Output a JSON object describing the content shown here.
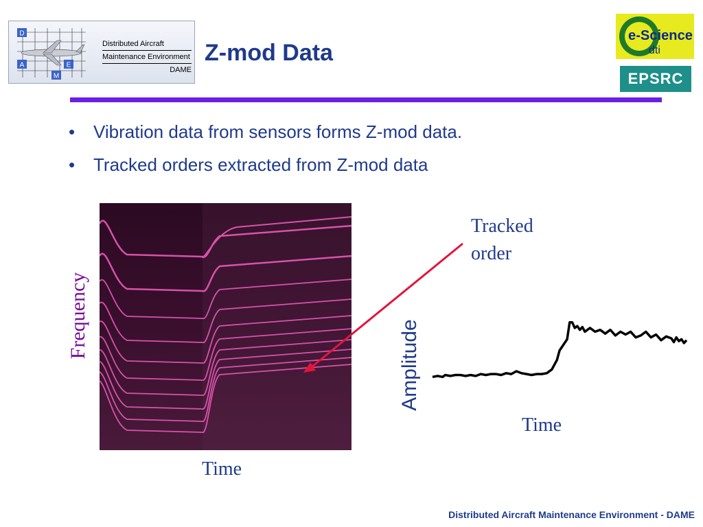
{
  "header": {
    "title": "Z-mod Data",
    "dame_logo": {
      "line1": "Distributed Aircraft",
      "line2": "Maintenance Environment",
      "line3": "DAME",
      "letters": [
        "D",
        "A",
        "M",
        "E"
      ]
    },
    "escience_logo": {
      "main": "e-Science",
      "sub": "dti"
    },
    "epsrc_logo": "EPSRC"
  },
  "bullets": [
    "Vibration data from sensors forms Z-mod data.",
    "Tracked orders extracted from Z-mod data"
  ],
  "spectrogram": {
    "ylabel": "Frequency",
    "xlabel": "Time"
  },
  "annotation": {
    "line1": "Tracked",
    "line2": "order"
  },
  "chart_data": {
    "type": "line",
    "title": "",
    "xlabel": "Time",
    "ylabel": "Amplitude",
    "grid": false,
    "axes_visible": false,
    "series": [
      {
        "color": "#000000",
        "x": [
          0,
          2,
          4,
          5,
          7,
          9,
          11,
          13,
          15,
          17,
          19,
          21,
          23,
          25,
          27,
          29,
          31,
          33,
          35,
          37,
          39,
          41,
          43,
          45,
          47,
          49,
          50,
          51,
          52,
          53,
          54,
          55,
          56,
          57,
          58,
          59,
          60,
          62,
          64,
          66,
          68,
          70,
          72,
          74,
          76,
          78,
          80,
          82,
          84,
          86,
          88,
          90,
          92,
          94,
          95,
          96,
          97,
          98,
          99,
          100
        ],
        "y": [
          2,
          3,
          2,
          4,
          3,
          4,
          4,
          3,
          4,
          3,
          5,
          4,
          5,
          5,
          4,
          6,
          5,
          8,
          6,
          5,
          4,
          5,
          5,
          6,
          10,
          20,
          30,
          34,
          38,
          42,
          60,
          60,
          54,
          56,
          52,
          55,
          50,
          54,
          50,
          52,
          48,
          52,
          46,
          50,
          47,
          50,
          44,
          46,
          50,
          44,
          47,
          41,
          45,
          43,
          39,
          44,
          40,
          42,
          38,
          41
        ],
        "color_note": "amplitude trace",
        "ylim": [
          0,
          70
        ]
      }
    ]
  },
  "footer": "Distributed Aircraft Maintenance Environment - DAME",
  "colors": {
    "title_blue": "#1f3a8c",
    "rule_purple": "#6a1fe8",
    "arrow_red": "#e3143c",
    "spectro_bg": "#2a0a20",
    "spectro_line": "#e85ab8"
  }
}
